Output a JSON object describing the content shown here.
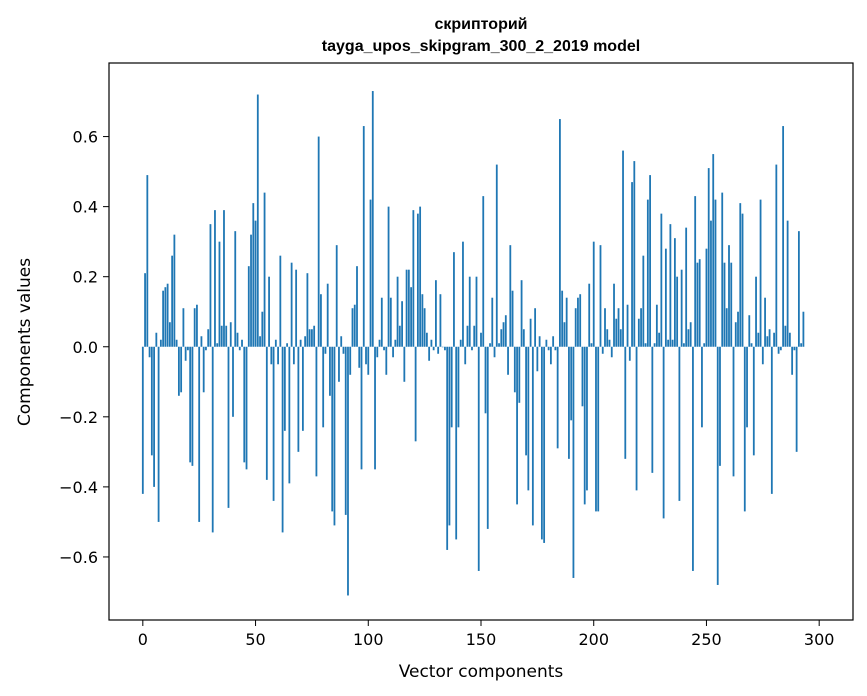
{
  "chart_data": {
    "type": "bar",
    "title_line1": "скрипторий",
    "title_line2": "tayga_upos_skipgram_300_2_2019 model",
    "xlabel": "Vector components",
    "ylabel": "Components values",
    "xlim": [
      -15,
      315
    ],
    "ylim": [
      -0.78,
      0.81
    ],
    "xticks": [
      0,
      50,
      100,
      150,
      200,
      250,
      300
    ],
    "yticks": [
      -0.6,
      -0.4,
      -0.2,
      0.0,
      0.2,
      0.4,
      0.6
    ],
    "ytick_labels": [
      "−0.6",
      "−0.4",
      "−0.2",
      "0.0",
      "0.2",
      "0.4",
      "0.6"
    ],
    "bar_color": "#1f77b4",
    "values": [
      -0.42,
      0.21,
      0.49,
      -0.03,
      -0.31,
      -0.4,
      0.04,
      -0.5,
      0.02,
      0.16,
      0.17,
      0.18,
      0.07,
      0.26,
      0.32,
      0.02,
      -0.14,
      -0.13,
      0.11,
      -0.04,
      -0.01,
      -0.33,
      -0.34,
      0.11,
      0.12,
      -0.5,
      0.03,
      -0.13,
      -0.01,
      0.05,
      0.35,
      -0.53,
      0.39,
      0.01,
      0.3,
      0.06,
      0.39,
      0.06,
      -0.46,
      0.07,
      -0.2,
      0.33,
      0.04,
      -0.01,
      0.02,
      -0.33,
      -0.35,
      0.23,
      0.32,
      0.41,
      0.36,
      0.72,
      0.03,
      0.1,
      0.44,
      -0.38,
      0.2,
      -0.05,
      -0.44,
      0.02,
      -0.05,
      0.26,
      -0.53,
      -0.24,
      0.01,
      -0.39,
      0.24,
      -0.05,
      0.22,
      -0.3,
      0.02,
      -0.24,
      0.03,
      0.21,
      0.05,
      0.05,
      0.06,
      -0.37,
      0.6,
      0.15,
      -0.23,
      -0.02,
      0.18,
      -0.14,
      -0.47,
      -0.51,
      0.29,
      -0.1,
      0.03,
      -0.02,
      -0.48,
      -0.71,
      -0.08,
      0.11,
      0.12,
      0.23,
      -0.06,
      -0.35,
      0.63,
      -0.05,
      -0.08,
      0.42,
      0.73,
      -0.35,
      -0.03,
      0.02,
      0.14,
      -0.01,
      -0.08,
      0.4,
      0.14,
      -0.03,
      0.02,
      0.2,
      0.06,
      0.13,
      -0.1,
      0.22,
      0.22,
      0.17,
      0.39,
      -0.27,
      0.38,
      0.4,
      0.15,
      0.11,
      0.04,
      -0.04,
      0.02,
      -0.01,
      0.19,
      -0.02,
      0.15,
      0.0,
      -0.01,
      -0.58,
      -0.51,
      -0.23,
      0.27,
      -0.55,
      -0.23,
      0.02,
      0.3,
      -0.05,
      0.06,
      0.2,
      -0.01,
      0.06,
      0.2,
      -0.64,
      0.04,
      0.43,
      -0.19,
      -0.52,
      0.01,
      0.14,
      -0.03,
      0.52,
      0.01,
      0.05,
      0.07,
      0.09,
      -0.08,
      0.29,
      0.16,
      -0.13,
      -0.45,
      -0.16,
      0.19,
      0.05,
      -0.31,
      -0.41,
      0.08,
      -0.51,
      0.11,
      -0.07,
      0.03,
      -0.55,
      -0.56,
      0.02,
      -0.01,
      -0.05,
      0.03,
      -0.01,
      -0.29,
      0.65,
      0.16,
      0.07,
      0.14,
      -0.32,
      -0.21,
      -0.66,
      0.11,
      0.14,
      0.15,
      -0.17,
      -0.45,
      -0.41,
      0.18,
      0.01,
      0.3,
      -0.47,
      -0.47,
      0.29,
      -0.02,
      0.11,
      0.05,
      0.02,
      -0.03,
      0.18,
      0.08,
      0.11,
      0.05,
      0.56,
      -0.32,
      0.12,
      -0.04,
      0.47,
      0.53,
      -0.41,
      0.08,
      0.11,
      0.26,
      0.01,
      0.42,
      0.49,
      -0.36,
      0.01,
      0.12,
      0.04,
      0.38,
      -0.49,
      0.28,
      0.02,
      0.35,
      0.02,
      0.31,
      0.2,
      -0.44,
      0.22,
      0.01,
      0.34,
      0.05,
      0.07,
      -0.64,
      0.43,
      0.24,
      0.25,
      -0.23,
      0.01,
      0.28,
      0.51,
      0.36,
      0.55,
      0.42,
      -0.68,
      -0.34,
      0.44,
      0.24,
      0.11,
      0.29,
      0.24,
      -0.37,
      0.07,
      0.1,
      0.41,
      0.38,
      -0.47,
      -0.23,
      0.09,
      0.01,
      -0.31,
      0.2,
      0.04,
      0.42,
      -0.05,
      0.14,
      0.03,
      0.05,
      -0.42,
      0.04,
      0.52,
      -0.02,
      -0.01,
      0.63,
      0.06,
      0.36,
      0.04,
      -0.08,
      -0.01,
      -0.3,
      0.33,
      0.01,
      0.1
    ]
  }
}
